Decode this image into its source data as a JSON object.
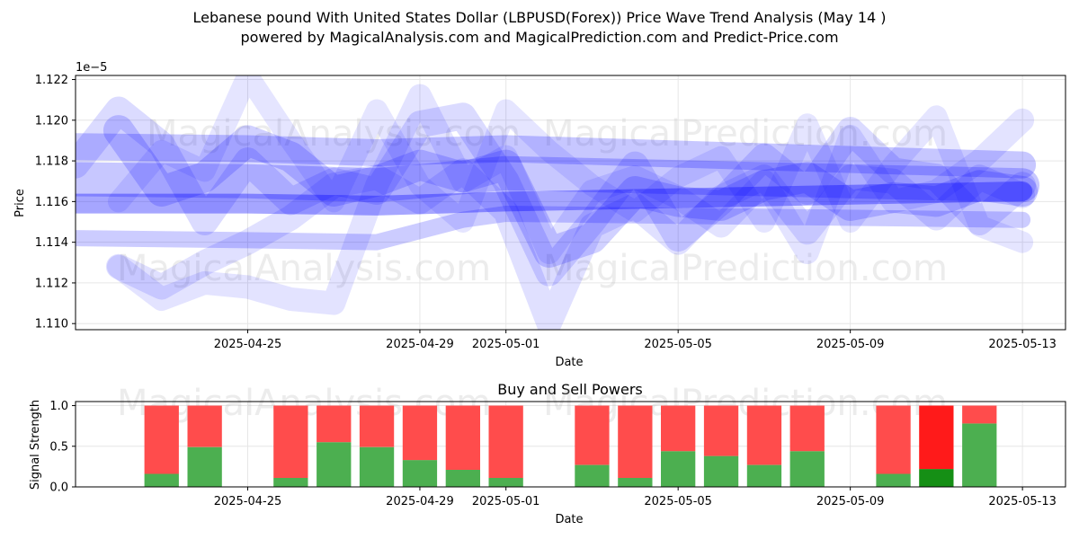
{
  "header": {
    "title_line1": "Lebanese pound With United States Dollar (LBPUSD(Forex)) Price Wave Trend Analysis (May 14 )",
    "title_line2": "powered by MagicalAnalysis.com and MagicalPrediction.com and Predict-Price.com"
  },
  "watermarks": [
    "MagicalAnalysis.com",
    "MagicalPrediction.com"
  ],
  "chart_data": [
    {
      "type": "line",
      "title": "",
      "xlabel": "Date",
      "ylabel": "Price",
      "y_offset_label": "1e−5",
      "xlim": [
        "2025-04-21",
        "2025-05-14"
      ],
      "ylim": [
        1.1097,
        1.1222
      ],
      "x_ticks": [
        "2025-04-25",
        "2025-04-29",
        "2025-05-01",
        "2025-05-05",
        "2025-05-09",
        "2025-05-13"
      ],
      "y_ticks": [
        "1.110",
        "1.112",
        "1.114",
        "1.116",
        "1.118",
        "1.120",
        "1.122"
      ],
      "grid": true,
      "color": "#0000ff",
      "bands": [
        {
          "x": [
            "2025-04-21",
            "2025-04-25",
            "2025-04-28",
            "2025-05-01",
            "2025-05-13"
          ],
          "y": [
            1.1159,
            1.1159,
            1.1158,
            1.116,
            1.1165
          ]
        },
        {
          "x": [
            "2025-04-21",
            "2025-04-25",
            "2025-04-28",
            "2025-05-01",
            "2025-05-13"
          ],
          "y": [
            1.1187,
            1.1186,
            1.1184,
            1.1186,
            1.1178
          ]
        },
        {
          "x": [
            "2025-04-21",
            "2025-04-25",
            "2025-04-28",
            "2025-05-01",
            "2025-05-13"
          ],
          "y": [
            1.1171,
            1.117,
            1.1168,
            1.1174,
            1.1168
          ]
        },
        {
          "x": [
            "2025-04-21",
            "2025-04-25",
            "2025-04-28",
            "2025-04-30",
            "2025-05-01",
            "2025-05-13"
          ],
          "y": [
            1.1142,
            1.1141,
            1.114,
            1.1151,
            1.1154,
            1.1151
          ]
        },
        {
          "x": [
            "2025-04-22",
            "2025-04-23",
            "2025-04-24",
            "2025-04-25",
            "2025-04-26",
            "2025-04-27",
            "2025-04-28",
            "2025-04-29",
            "2025-04-30",
            "2025-05-01",
            "2025-05-02",
            "2025-05-03",
            "2025-05-04",
            "2025-05-05",
            "2025-05-06",
            "2025-05-07",
            "2025-05-08",
            "2025-05-09",
            "2025-05-10",
            "2025-05-11",
            "2025-05-12",
            "2025-05-13"
          ],
          "y": [
            1.1195,
            1.1165,
            1.1172,
            1.119,
            1.1182,
            1.1165,
            1.117,
            1.1178,
            1.1172,
            1.1178,
            1.1135,
            1.1142,
            1.1165,
            1.116,
            1.1158,
            1.1168,
            1.1172,
            1.1158,
            1.1162,
            1.116,
            1.1168,
            1.1165
          ]
        },
        {
          "x": [
            "2025-04-21",
            "2025-04-22",
            "2025-04-23",
            "2025-04-24",
            "2025-04-25",
            "2025-04-26",
            "2025-04-27",
            "2025-04-28",
            "2025-04-29",
            "2025-04-30",
            "2025-05-01",
            "2025-05-02",
            "2025-05-03",
            "2025-05-04",
            "2025-05-05",
            "2025-05-06",
            "2025-05-07",
            "2025-05-08",
            "2025-05-09",
            "2025-05-10",
            "2025-05-11",
            "2025-05-12",
            "2025-05-13"
          ],
          "y": [
            1.1178,
            1.1205,
            1.1188,
            1.115,
            1.118,
            1.116,
            1.117,
            1.1165,
            1.1198,
            1.1202,
            1.117,
            1.1125,
            1.115,
            1.1178,
            1.1142,
            1.116,
            1.1182,
            1.1165,
            1.1195,
            1.1175,
            1.1172,
            1.115,
            1.1168
          ]
        },
        {
          "x": [
            "2025-04-22",
            "2025-04-23",
            "2025-04-24",
            "2025-04-25",
            "2025-04-26",
            "2025-04-27",
            "2025-04-28",
            "2025-04-29",
            "2025-04-30",
            "2025-05-01",
            "2025-05-02",
            "2025-05-03",
            "2025-05-04",
            "2025-05-05",
            "2025-05-06",
            "2025-05-07",
            "2025-05-08",
            "2025-05-09",
            "2025-05-10",
            "2025-05-11",
            "2025-05-12",
            "2025-05-13"
          ],
          "y": [
            1.1128,
            1.1118,
            1.113,
            1.114,
            1.1152,
            1.1168,
            1.1172,
            1.116,
            1.1175,
            1.1155,
            1.11,
            1.1148,
            1.1158,
            1.114,
            1.1162,
            1.1172,
            1.1145,
            1.1172,
            1.117,
            1.1152,
            1.1172,
            1.1163
          ]
        },
        {
          "x": [
            "2025-04-22",
            "2025-04-23",
            "2025-04-24",
            "2025-04-25",
            "2025-04-26",
            "2025-04-27",
            "2025-04-28",
            "2025-04-29",
            "2025-04-30",
            "2025-05-01",
            "2025-05-02",
            "2025-05-03",
            "2025-05-04",
            "2025-05-05",
            "2025-05-06",
            "2025-05-07",
            "2025-05-08",
            "2025-05-09",
            "2025-05-10",
            "2025-05-11",
            "2025-05-12",
            "2025-05-13"
          ],
          "y": [
            1.1128,
            1.1112,
            1.112,
            1.1118,
            1.1112,
            1.111,
            1.1168,
            1.1212,
            1.117,
            1.1182,
            1.1135,
            1.1165,
            1.1172,
            1.1162,
            1.1148,
            1.117,
            1.1135,
            1.1192,
            1.116,
            1.1165,
            1.118,
            1.12
          ]
        },
        {
          "x": [
            "2025-04-22",
            "2025-04-23",
            "2025-04-24",
            "2025-04-25",
            "2025-04-26",
            "2025-04-27",
            "2025-04-28",
            "2025-04-29",
            "2025-04-30",
            "2025-05-01",
            "2025-05-02",
            "2025-05-03",
            "2025-05-04",
            "2025-05-05",
            "2025-05-06",
            "2025-05-07",
            "2025-05-08",
            "2025-05-09",
            "2025-05-10",
            "2025-05-11",
            "2025-05-12",
            "2025-05-13"
          ],
          "y": [
            1.116,
            1.1185,
            1.1175,
            1.1222,
            1.119,
            1.116,
            1.1205,
            1.1168,
            1.115,
            1.1205,
            1.1185,
            1.1168,
            1.1155,
            1.1172,
            1.1182,
            1.115,
            1.1198,
            1.115,
            1.1178,
            1.1202,
            1.1148,
            1.114
          ]
        }
      ]
    },
    {
      "type": "bar",
      "title": "Buy and Sell Powers",
      "xlabel": "Date",
      "ylabel": "Signal Strength",
      "xlim": [
        "2025-04-21",
        "2025-05-14"
      ],
      "ylim": [
        0,
        1.05
      ],
      "x_ticks": [
        "2025-04-25",
        "2025-04-29",
        "2025-05-01",
        "2025-05-05",
        "2025-05-09",
        "2025-05-13"
      ],
      "y_ticks": [
        "0.0",
        "0.5",
        "1.0"
      ],
      "grid": true,
      "colors": {
        "buy": "#4caf50",
        "sell": "#ff4c4c",
        "buy_strong": "#158f15",
        "sell_strong": "#ff1a1a"
      },
      "series": [
        {
          "name": "Buy",
          "x": [
            "2025-04-23",
            "2025-04-24",
            "2025-04-26",
            "2025-04-27",
            "2025-04-28",
            "2025-04-29",
            "2025-04-30",
            "2025-05-01",
            "2025-05-03",
            "2025-05-04",
            "2025-05-05",
            "2025-05-06",
            "2025-05-07",
            "2025-05-08",
            "2025-05-10",
            "2025-05-11",
            "2025-05-12"
          ],
          "values": [
            0.16,
            0.49,
            0.11,
            0.55,
            0.49,
            0.33,
            0.21,
            0.11,
            0.27,
            0.11,
            0.44,
            0.38,
            0.27,
            0.44,
            0.16,
            0.22,
            0.78
          ]
        },
        {
          "name": "Sell",
          "x": [
            "2025-04-23",
            "2025-04-24",
            "2025-04-26",
            "2025-04-27",
            "2025-04-28",
            "2025-04-29",
            "2025-04-30",
            "2025-05-01",
            "2025-05-03",
            "2025-05-04",
            "2025-05-05",
            "2025-05-06",
            "2025-05-07",
            "2025-05-08",
            "2025-05-10",
            "2025-05-11",
            "2025-05-12"
          ],
          "values": [
            0.84,
            0.51,
            0.89,
            0.45,
            0.51,
            0.67,
            0.79,
            0.89,
            0.73,
            0.89,
            0.56,
            0.62,
            0.73,
            0.56,
            0.84,
            0.78,
            0.22
          ]
        }
      ]
    }
  ]
}
